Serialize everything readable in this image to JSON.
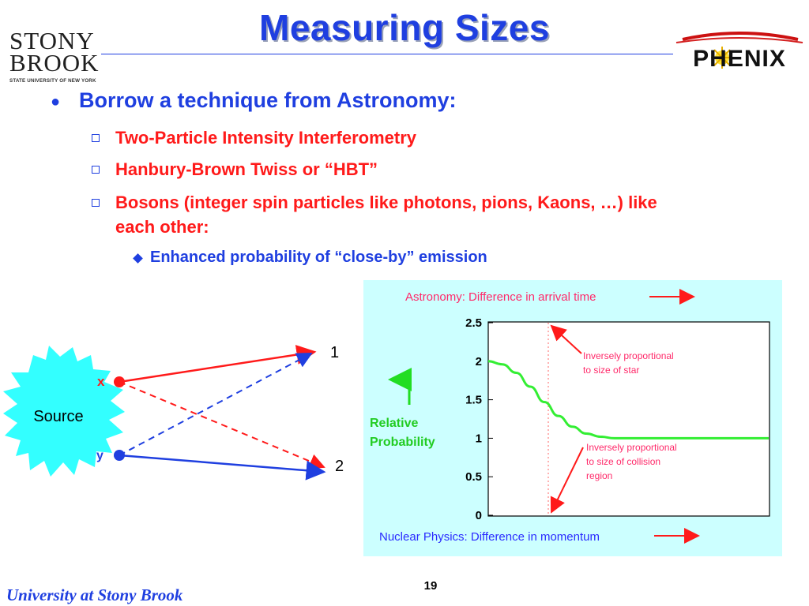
{
  "slide": {
    "title": "Measuring Sizes",
    "page_number": "19",
    "footer": "University at Stony Brook"
  },
  "logos": {
    "stony_brook": {
      "line1": "STONY",
      "line2": "BROOK",
      "subtitle": "STATE UNIVERSITY OF NEW YORK"
    },
    "phenix": {
      "text": "PHENIX"
    }
  },
  "bullets": {
    "main": "Borrow a technique from Astronomy:",
    "sub": [
      "Two-Particle Intensity Interferometry",
      "Hanbury-Brown Twiss or “HBT”",
      "Bosons (integer spin particles like photons, pions, Kaons, …) like each other:"
    ],
    "subsub": "Enhanced probability of “close-by” emission"
  },
  "diagram": {
    "source_label": "Source",
    "point_x": "x",
    "point_y": "y",
    "detector_1": "1",
    "detector_2": "2"
  },
  "colors": {
    "title_blue": "#1f3fe0",
    "bullet_red": "#ff1a1a",
    "chart_bg": "#ccffff",
    "curve_green": "#33ee33",
    "starburst": "#33ffff"
  },
  "chart_data": {
    "type": "line",
    "top_label": "Astronomy: Difference in arrival time",
    "bottom_label": "Nuclear Physics: Difference in momentum",
    "ylabel": "Relative Probability",
    "yticks": [
      "0",
      "0.5",
      "1",
      "1.5",
      "2",
      "2.5"
    ],
    "ylim": [
      0,
      2.5
    ],
    "annotation_top": "Inversely proportional to size of star",
    "annotation_bottom": "Inversely proportional to size of collision region",
    "series": [
      {
        "x": [
          0,
          0.05,
          0.1,
          0.15,
          0.2,
          0.25,
          0.3,
          0.35,
          0.4,
          0.45,
          0.5,
          0.6,
          0.7,
          0.8,
          0.9,
          1.0
        ],
        "y": [
          2.0,
          1.96,
          1.85,
          1.67,
          1.47,
          1.29,
          1.15,
          1.06,
          1.02,
          1.0,
          1.0,
          1.0,
          1.0,
          1.0,
          1.0,
          1.0
        ]
      }
    ]
  }
}
